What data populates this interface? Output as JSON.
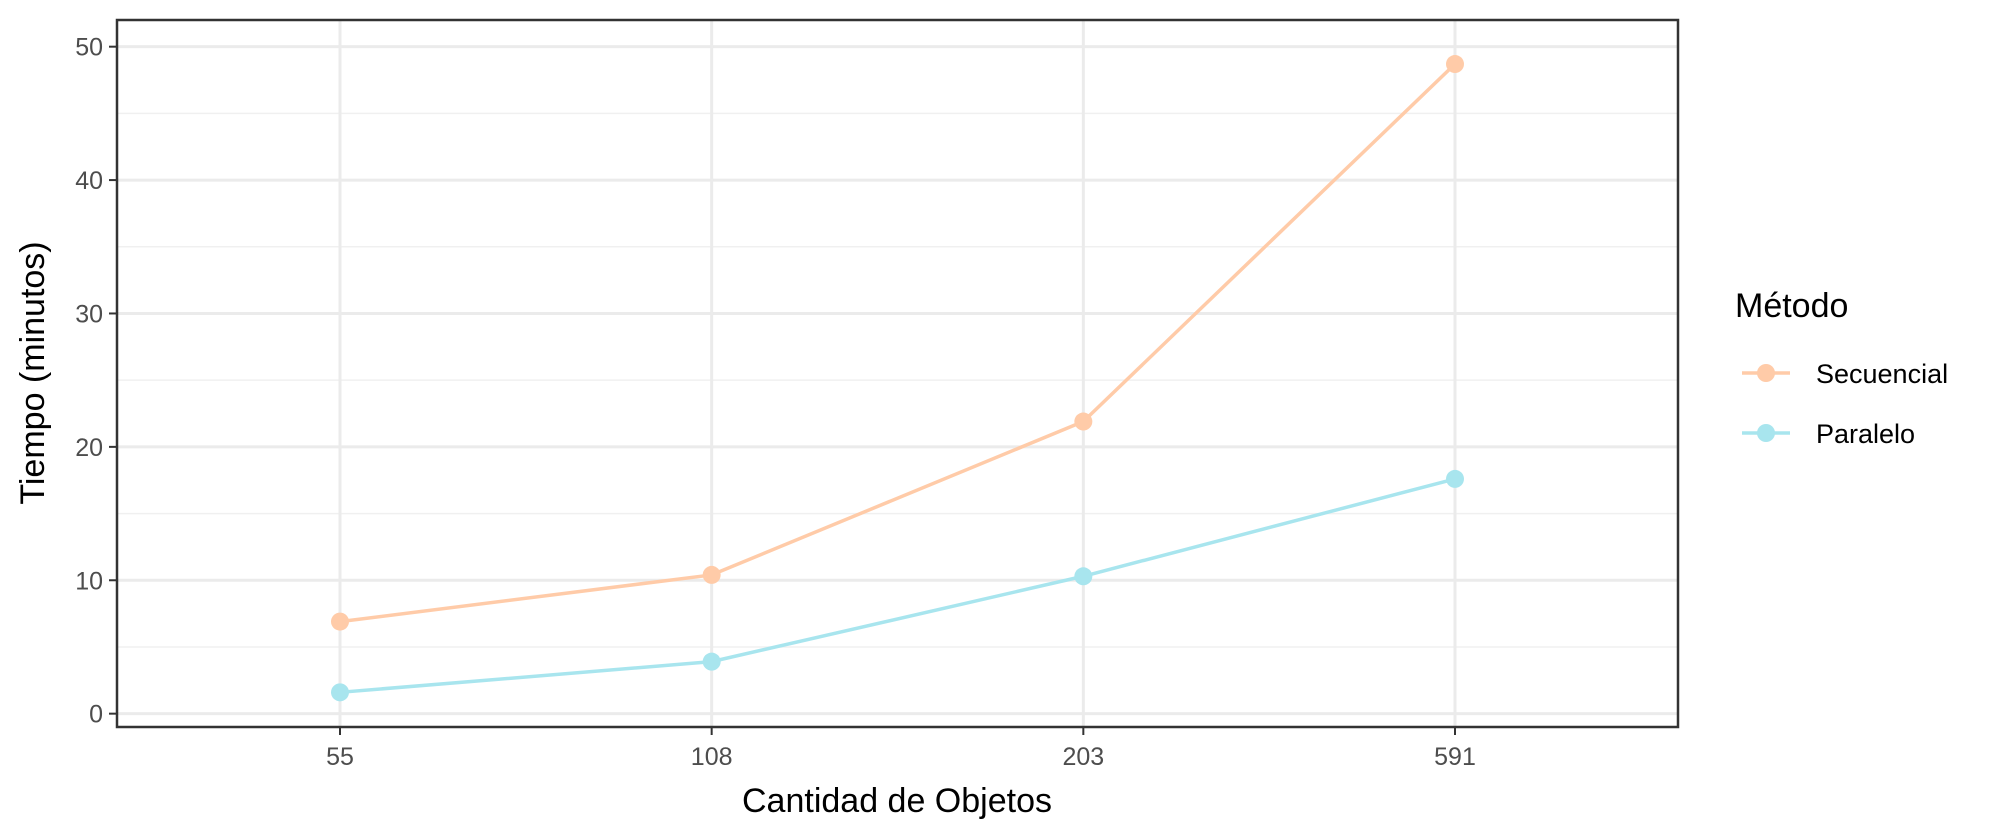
{
  "chart_data": {
    "type": "line",
    "title": "",
    "xlabel": "Cantidad de Objetos",
    "ylabel": "Tiempo (minutos)",
    "categories": [
      "55",
      "108",
      "203",
      "591"
    ],
    "yticks": [
      0,
      10,
      20,
      30,
      40,
      50
    ],
    "ylim": [
      -1,
      52
    ],
    "grid": true,
    "legend": {
      "title": "Método",
      "position": "right"
    },
    "series": [
      {
        "name": "Secuencial",
        "color": "#FFCBA8",
        "values": [
          6.9,
          10.4,
          21.9,
          48.7
        ]
      },
      {
        "name": "Paralelo",
        "color": "#A8E5EE",
        "values": [
          1.6,
          3.9,
          10.3,
          17.6
        ]
      }
    ]
  }
}
